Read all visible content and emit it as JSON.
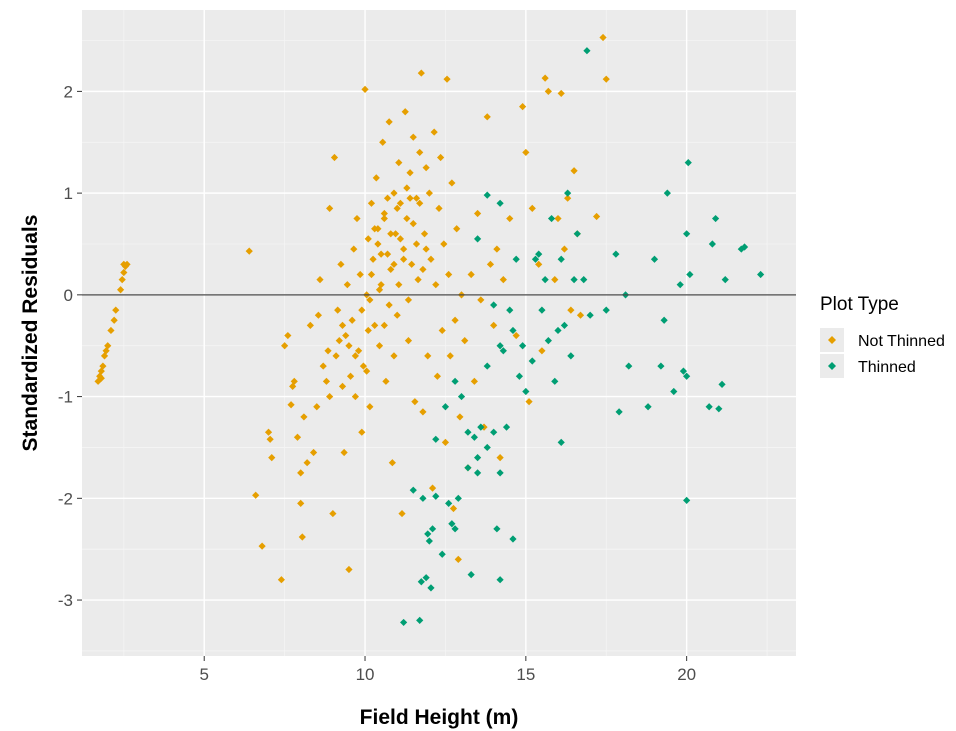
{
  "chart_data": {
    "type": "scatter",
    "xlabel": "Field Height (m)",
    "ylabel": "Standardized Residuals",
    "xlim": [
      1.2,
      23.4
    ],
    "ylim": [
      -3.55,
      2.8
    ],
    "x_ticks": [
      "5",
      "10",
      "15",
      "20"
    ],
    "y_ticks": [
      "2",
      "1",
      "0",
      "-1",
      "-2",
      "-3"
    ],
    "reference_line_y": 0,
    "grid": true,
    "legend": {
      "title": "Plot Type",
      "placement": "right"
    },
    "series": [
      {
        "name": "Not Thinned",
        "color": "#e69f00",
        "marker": "diamond",
        "points": [
          [
            1.7,
            -0.85
          ],
          [
            1.75,
            -0.8
          ],
          [
            1.8,
            -0.75
          ],
          [
            1.85,
            -0.7
          ],
          [
            1.8,
            -0.82
          ],
          [
            1.9,
            -0.6
          ],
          [
            1.95,
            -0.55
          ],
          [
            2.0,
            -0.5
          ],
          [
            2.1,
            -0.35
          ],
          [
            2.2,
            -0.25
          ],
          [
            2.25,
            -0.15
          ],
          [
            2.4,
            0.05
          ],
          [
            2.45,
            0.15
          ],
          [
            2.5,
            0.22
          ],
          [
            2.55,
            0.28
          ],
          [
            2.6,
            0.3
          ],
          [
            2.5,
            0.3
          ],
          [
            6.4,
            0.43
          ],
          [
            6.6,
            -1.97
          ],
          [
            6.8,
            -2.47
          ],
          [
            7.0,
            -1.35
          ],
          [
            7.05,
            -1.42
          ],
          [
            7.1,
            -1.6
          ],
          [
            7.4,
            -2.8
          ],
          [
            7.5,
            -0.5
          ],
          [
            7.6,
            -0.4
          ],
          [
            7.7,
            -1.08
          ],
          [
            7.75,
            -0.9
          ],
          [
            7.8,
            -0.85
          ],
          [
            7.9,
            -1.4
          ],
          [
            8.0,
            -1.75
          ],
          [
            8.0,
            -2.05
          ],
          [
            8.05,
            -2.38
          ],
          [
            8.1,
            -1.2
          ],
          [
            8.2,
            -1.65
          ],
          [
            8.3,
            -0.3
          ],
          [
            8.4,
            -1.55
          ],
          [
            8.5,
            -1.1
          ],
          [
            8.55,
            -0.2
          ],
          [
            8.6,
            0.15
          ],
          [
            8.7,
            -0.7
          ],
          [
            8.8,
            -0.85
          ],
          [
            8.85,
            -0.55
          ],
          [
            8.9,
            -1.0
          ],
          [
            8.9,
            0.85
          ],
          [
            9.0,
            -2.15
          ],
          [
            9.05,
            1.35
          ],
          [
            9.1,
            -0.6
          ],
          [
            9.15,
            -0.15
          ],
          [
            9.2,
            -0.45
          ],
          [
            9.25,
            0.3
          ],
          [
            9.3,
            -0.9
          ],
          [
            9.35,
            -1.55
          ],
          [
            9.4,
            -0.4
          ],
          [
            9.45,
            0.1
          ],
          [
            9.5,
            -2.7
          ],
          [
            9.55,
            -0.8
          ],
          [
            9.6,
            -0.25
          ],
          [
            9.65,
            0.45
          ],
          [
            9.7,
            -1.0
          ],
          [
            9.75,
            0.75
          ],
          [
            9.8,
            -0.55
          ],
          [
            9.85,
            0.2
          ],
          [
            9.9,
            -1.35
          ],
          [
            9.95,
            -0.7
          ],
          [
            10.0,
            2.02
          ],
          [
            10.05,
            0.0
          ],
          [
            10.05,
            -0.75
          ],
          [
            10.1,
            0.55
          ],
          [
            10.15,
            -1.1
          ],
          [
            10.2,
            0.9
          ],
          [
            10.25,
            0.35
          ],
          [
            10.3,
            -0.3
          ],
          [
            10.35,
            1.15
          ],
          [
            10.4,
            0.65
          ],
          [
            10.45,
            -0.5
          ],
          [
            10.5,
            0.1
          ],
          [
            10.55,
            1.5
          ],
          [
            10.6,
            0.8
          ],
          [
            10.65,
            -0.85
          ],
          [
            10.7,
            0.4
          ],
          [
            10.75,
            1.7
          ],
          [
            10.8,
            0.25
          ],
          [
            10.85,
            -1.65
          ],
          [
            10.9,
            1.0
          ],
          [
            10.95,
            0.6
          ],
          [
            11.0,
            -0.2
          ],
          [
            11.05,
            1.3
          ],
          [
            11.1,
            0.9
          ],
          [
            11.15,
            -2.15
          ],
          [
            11.2,
            0.45
          ],
          [
            11.25,
            1.8
          ],
          [
            11.3,
            0.75
          ],
          [
            11.35,
            -0.45
          ],
          [
            11.4,
            1.2
          ],
          [
            11.45,
            0.3
          ],
          [
            11.5,
            1.55
          ],
          [
            11.55,
            -1.05
          ],
          [
            11.6,
            0.95
          ],
          [
            11.65,
            0.15
          ],
          [
            11.7,
            1.4
          ],
          [
            11.75,
            2.18
          ],
          [
            11.8,
            -1.15
          ],
          [
            11.85,
            0.6
          ],
          [
            11.9,
            1.25
          ],
          [
            11.95,
            -0.6
          ],
          [
            12.0,
            1.0
          ],
          [
            12.05,
            0.35
          ],
          [
            12.1,
            -1.9
          ],
          [
            12.15,
            1.6
          ],
          [
            12.2,
            0.1
          ],
          [
            12.25,
            -0.8
          ],
          [
            12.3,
            0.85
          ],
          [
            12.35,
            1.35
          ],
          [
            12.4,
            -0.35
          ],
          [
            12.45,
            0.5
          ],
          [
            12.5,
            -1.45
          ],
          [
            12.55,
            2.12
          ],
          [
            12.6,
            0.2
          ],
          [
            12.65,
            -0.6
          ],
          [
            12.7,
            1.1
          ],
          [
            12.75,
            -2.1
          ],
          [
            12.8,
            -0.25
          ],
          [
            12.85,
            0.65
          ],
          [
            12.9,
            -2.6
          ],
          [
            12.95,
            -1.2
          ],
          [
            13.0,
            0.0
          ],
          [
            13.1,
            -0.45
          ],
          [
            13.2,
            -1.7
          ],
          [
            13.3,
            0.2
          ],
          [
            13.4,
            -0.85
          ],
          [
            13.5,
            0.8
          ],
          [
            13.6,
            -0.05
          ],
          [
            13.7,
            -1.3
          ],
          [
            13.8,
            1.75
          ],
          [
            13.9,
            0.3
          ],
          [
            14.0,
            -0.3
          ],
          [
            14.1,
            0.45
          ],
          [
            14.2,
            -1.6
          ],
          [
            14.3,
            0.15
          ],
          [
            14.5,
            0.75
          ],
          [
            14.7,
            -0.4
          ],
          [
            14.9,
            1.85
          ],
          [
            15.0,
            1.4
          ],
          [
            15.1,
            -1.05
          ],
          [
            15.2,
            0.85
          ],
          [
            15.4,
            0.3
          ],
          [
            15.5,
            -0.55
          ],
          [
            15.6,
            2.13
          ],
          [
            15.7,
            2.0
          ],
          [
            15.9,
            0.15
          ],
          [
            16.0,
            0.75
          ],
          [
            16.1,
            1.98
          ],
          [
            16.2,
            0.45
          ],
          [
            16.3,
            0.95
          ],
          [
            16.4,
            -0.15
          ],
          [
            16.5,
            1.22
          ],
          [
            16.6,
            0.6
          ],
          [
            16.7,
            -0.2
          ],
          [
            17.2,
            0.77
          ],
          [
            17.4,
            2.53
          ],
          [
            17.5,
            2.12
          ],
          [
            10.3,
            0.65
          ],
          [
            10.5,
            0.4
          ],
          [
            10.7,
            0.95
          ],
          [
            10.9,
            0.3
          ],
          [
            11.1,
            0.55
          ],
          [
            11.3,
            1.05
          ],
          [
            11.5,
            0.7
          ],
          [
            11.7,
            0.9
          ],
          [
            11.9,
            0.45
          ],
          [
            10.2,
            0.2
          ],
          [
            10.4,
            0.5
          ],
          [
            10.6,
            0.75
          ],
          [
            10.8,
            0.6
          ],
          [
            11.0,
            0.85
          ],
          [
            11.2,
            0.35
          ],
          [
            11.4,
            0.95
          ],
          [
            11.6,
            0.5
          ],
          [
            11.8,
            0.25
          ],
          [
            10.15,
            -0.05
          ],
          [
            10.45,
            0.05
          ],
          [
            10.75,
            -0.1
          ],
          [
            11.05,
            0.1
          ],
          [
            11.35,
            -0.05
          ],
          [
            9.9,
            -0.15
          ],
          [
            10.1,
            -0.35
          ],
          [
            9.7,
            -0.6
          ],
          [
            9.5,
            -0.5
          ],
          [
            9.3,
            -0.3
          ],
          [
            10.6,
            -0.3
          ],
          [
            10.9,
            -0.6
          ]
        ]
      },
      {
        "name": "Thinned",
        "color": "#009e73",
        "marker": "diamond",
        "points": [
          [
            11.2,
            -3.22
          ],
          [
            11.7,
            -3.2
          ],
          [
            11.75,
            -2.82
          ],
          [
            11.9,
            -2.78
          ],
          [
            12.05,
            -2.88
          ],
          [
            11.95,
            -2.35
          ],
          [
            12.0,
            -2.42
          ],
          [
            12.1,
            -2.3
          ],
          [
            11.5,
            -1.92
          ],
          [
            11.8,
            -2.0
          ],
          [
            12.2,
            -1.98
          ],
          [
            12.4,
            -2.55
          ],
          [
            12.6,
            -2.05
          ],
          [
            12.8,
            -2.3
          ],
          [
            12.7,
            -2.25
          ],
          [
            12.9,
            -2.0
          ],
          [
            13.3,
            -2.75
          ],
          [
            13.5,
            -1.6
          ],
          [
            13.2,
            -1.7
          ],
          [
            13.0,
            -1.0
          ],
          [
            12.2,
            -1.42
          ],
          [
            12.5,
            -1.1
          ],
          [
            12.8,
            -0.85
          ],
          [
            13.2,
            -1.35
          ],
          [
            13.4,
            -1.4
          ],
          [
            13.5,
            -1.75
          ],
          [
            13.6,
            -1.3
          ],
          [
            13.8,
            -1.5
          ],
          [
            14.0,
            -1.35
          ],
          [
            14.2,
            -1.75
          ],
          [
            14.3,
            -0.55
          ],
          [
            14.4,
            -1.3
          ],
          [
            14.5,
            -0.15
          ],
          [
            14.6,
            -0.35
          ],
          [
            14.0,
            -0.1
          ],
          [
            14.2,
            -0.5
          ],
          [
            13.8,
            -0.7
          ],
          [
            14.1,
            -2.3
          ],
          [
            14.2,
            -2.8
          ],
          [
            14.6,
            -2.4
          ],
          [
            14.8,
            -0.8
          ],
          [
            14.9,
            -0.5
          ],
          [
            15.0,
            -0.95
          ],
          [
            15.2,
            -0.65
          ],
          [
            15.3,
            0.35
          ],
          [
            15.5,
            -0.15
          ],
          [
            15.7,
            -0.45
          ],
          [
            15.9,
            -0.85
          ],
          [
            16.0,
            -0.35
          ],
          [
            16.1,
            -1.45
          ],
          [
            16.2,
            -0.3
          ],
          [
            16.4,
            -0.6
          ],
          [
            16.5,
            0.15
          ],
          [
            16.6,
            0.6
          ],
          [
            16.3,
            1.0
          ],
          [
            16.8,
            0.15
          ],
          [
            17.0,
            -0.2
          ],
          [
            16.9,
            2.4
          ],
          [
            17.5,
            -0.15
          ],
          [
            17.8,
            0.4
          ],
          [
            17.9,
            -1.15
          ],
          [
            18.1,
            0.0
          ],
          [
            18.2,
            -0.7
          ],
          [
            18.8,
            -1.1
          ],
          [
            19.0,
            0.35
          ],
          [
            19.2,
            -0.7
          ],
          [
            19.3,
            -0.25
          ],
          [
            19.4,
            1.0
          ],
          [
            19.6,
            -0.95
          ],
          [
            19.8,
            0.1
          ],
          [
            19.9,
            -0.75
          ],
          [
            20.0,
            -0.8
          ],
          [
            20.0,
            0.6
          ],
          [
            20.05,
            1.3
          ],
          [
            20.1,
            0.2
          ],
          [
            20.0,
            -2.02
          ],
          [
            20.7,
            -1.1
          ],
          [
            20.8,
            0.5
          ],
          [
            20.9,
            0.75
          ],
          [
            21.0,
            -1.12
          ],
          [
            21.1,
            -0.88
          ],
          [
            21.2,
            0.15
          ],
          [
            21.7,
            0.45
          ],
          [
            21.8,
            0.47
          ],
          [
            22.3,
            0.2
          ],
          [
            13.8,
            0.98
          ],
          [
            14.2,
            0.9
          ],
          [
            13.5,
            0.55
          ],
          [
            14.7,
            0.35
          ],
          [
            15.8,
            0.75
          ],
          [
            15.4,
            0.4
          ],
          [
            16.1,
            0.35
          ],
          [
            15.6,
            0.15
          ]
        ]
      }
    ]
  }
}
